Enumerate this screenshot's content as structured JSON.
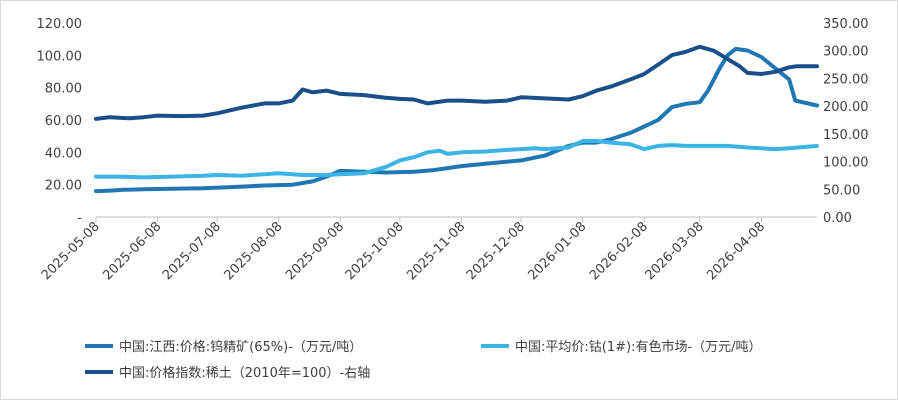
{
  "chart_data": {
    "type": "line",
    "title": "",
    "x_ticks": [
      "2025-05-08",
      "2025-06-08",
      "2025-07-08",
      "2025-08-08",
      "2025-09-08",
      "2025-10-08",
      "2025-11-08",
      "2025-12-08",
      "2026-01-08",
      "2026-02-08",
      "2026-03-08",
      "2026-04-08"
    ],
    "x_range": [
      "2025-05-08",
      "2026-05-06"
    ],
    "left_axis": {
      "ylim": [
        0,
        120
      ],
      "ticks": [
        0,
        20,
        40,
        60,
        80,
        100,
        120
      ],
      "tick_labels": [
        "-",
        "20.00",
        "40.00",
        "60.00",
        "80.00",
        "100.00",
        "120.00"
      ]
    },
    "right_axis": {
      "ylim": [
        0,
        350
      ],
      "ticks": [
        0,
        50,
        100,
        150,
        200,
        250,
        300,
        350
      ],
      "tick_labels": [
        "0.00",
        "50.00",
        "100.00",
        "150.00",
        "200.00",
        "250.00",
        "300.00",
        "350.00"
      ]
    },
    "grid": false,
    "legend_position": "bottom",
    "series": [
      {
        "name": "中国:江西:价格:钨精矿(65%)-（万元/吨）",
        "axis": "left",
        "color": "#1f77b4",
        "points": [
          [
            "2025-05-08",
            16
          ],
          [
            "2025-05-15",
            16.3
          ],
          [
            "2025-05-22",
            16.8
          ],
          [
            "2025-06-01",
            17.2
          ],
          [
            "2025-06-15",
            17.5
          ],
          [
            "2025-07-01",
            17.8
          ],
          [
            "2025-07-15",
            18.5
          ],
          [
            "2025-08-01",
            19.5
          ],
          [
            "2025-08-15",
            20
          ],
          [
            "2025-08-25",
            22
          ],
          [
            "2025-09-01",
            25
          ],
          [
            "2025-09-08",
            28.5
          ],
          [
            "2025-09-20",
            28
          ],
          [
            "2025-10-01",
            27.5
          ],
          [
            "2025-10-15",
            28
          ],
          [
            "2025-10-25",
            29
          ],
          [
            "2025-11-08",
            31.5
          ],
          [
            "2025-11-20",
            33
          ],
          [
            "2025-12-08",
            35
          ],
          [
            "2025-12-20",
            38
          ],
          [
            "2026-01-01",
            44
          ],
          [
            "2026-01-08",
            46
          ],
          [
            "2026-01-15",
            46
          ],
          [
            "2026-01-22",
            48
          ],
          [
            "2026-02-01",
            52
          ],
          [
            "2026-02-08",
            56
          ],
          [
            "2026-02-15",
            60
          ],
          [
            "2026-02-22",
            68
          ],
          [
            "2026-03-01",
            70
          ],
          [
            "2026-03-08",
            71
          ],
          [
            "2026-03-12",
            78
          ],
          [
            "2026-03-18",
            92
          ],
          [
            "2026-03-22",
            100
          ],
          [
            "2026-03-26",
            104
          ],
          [
            "2026-04-01",
            103
          ],
          [
            "2026-04-08",
            99
          ],
          [
            "2026-04-15",
            92
          ],
          [
            "2026-04-22",
            85
          ],
          [
            "2026-04-25",
            72
          ],
          [
            "2026-05-06",
            69
          ]
        ]
      },
      {
        "name": "中国:平均价:钴(1#):有色市场-（万元/吨）",
        "axis": "left",
        "color": "#3cb4e5",
        "points": [
          [
            "2025-05-08",
            25
          ],
          [
            "2025-05-20",
            25
          ],
          [
            "2025-06-01",
            24.5
          ],
          [
            "2025-06-15",
            25
          ],
          [
            "2025-07-01",
            25.5
          ],
          [
            "2025-07-08",
            26
          ],
          [
            "2025-07-20",
            25.5
          ],
          [
            "2025-08-01",
            26.5
          ],
          [
            "2025-08-08",
            27
          ],
          [
            "2025-08-20",
            26
          ],
          [
            "2025-09-01",
            26
          ],
          [
            "2025-09-08",
            26.5
          ],
          [
            "2025-09-20",
            27
          ],
          [
            "2025-10-01",
            31
          ],
          [
            "2025-10-08",
            35
          ],
          [
            "2025-10-15",
            37
          ],
          [
            "2025-10-22",
            40
          ],
          [
            "2025-10-28",
            41
          ],
          [
            "2025-11-01",
            39
          ],
          [
            "2025-11-08",
            40
          ],
          [
            "2025-11-20",
            40.5
          ],
          [
            "2025-12-01",
            41.5
          ],
          [
            "2025-12-08",
            42
          ],
          [
            "2025-12-15",
            42.5
          ],
          [
            "2025-12-20",
            42
          ],
          [
            "2026-01-01",
            43
          ],
          [
            "2026-01-08",
            47
          ],
          [
            "2026-01-15",
            47
          ],
          [
            "2026-01-22",
            46
          ],
          [
            "2026-02-01",
            45
          ],
          [
            "2026-02-08",
            42
          ],
          [
            "2026-02-15",
            44
          ],
          [
            "2026-02-22",
            44.5
          ],
          [
            "2026-03-01",
            44
          ],
          [
            "2026-03-08",
            44
          ],
          [
            "2026-03-15",
            44
          ],
          [
            "2026-03-22",
            44
          ],
          [
            "2026-04-01",
            43
          ],
          [
            "2026-04-08",
            42.5
          ],
          [
            "2026-04-15",
            42
          ],
          [
            "2026-04-22",
            42.5
          ],
          [
            "2026-05-01",
            43.5
          ],
          [
            "2026-05-06",
            44
          ]
        ]
      },
      {
        "name": "中国:价格指数:稀土（2010年=100）-右轴",
        "axis": "right",
        "color": "#1a4f8b",
        "points": [
          [
            "2025-05-08",
            177
          ],
          [
            "2025-05-15",
            180
          ],
          [
            "2025-05-25",
            178
          ],
          [
            "2025-06-01",
            180
          ],
          [
            "2025-06-08",
            183
          ],
          [
            "2025-06-20",
            182
          ],
          [
            "2025-07-01",
            183
          ],
          [
            "2025-07-08",
            187
          ],
          [
            "2025-07-20",
            197
          ],
          [
            "2025-08-01",
            205
          ],
          [
            "2025-08-08",
            205
          ],
          [
            "2025-08-15",
            210
          ],
          [
            "2025-08-20",
            230
          ],
          [
            "2025-08-25",
            225
          ],
          [
            "2025-09-01",
            228
          ],
          [
            "2025-09-08",
            222
          ],
          [
            "2025-09-20",
            220
          ],
          [
            "2025-10-01",
            215
          ],
          [
            "2025-10-08",
            213
          ],
          [
            "2025-10-15",
            212
          ],
          [
            "2025-10-22",
            205
          ],
          [
            "2025-11-01",
            210
          ],
          [
            "2025-11-08",
            210
          ],
          [
            "2025-11-20",
            208
          ],
          [
            "2025-12-01",
            210
          ],
          [
            "2025-12-08",
            216
          ],
          [
            "2025-12-20",
            214
          ],
          [
            "2026-01-01",
            212
          ],
          [
            "2026-01-08",
            218
          ],
          [
            "2026-01-15",
            228
          ],
          [
            "2026-01-22",
            235
          ],
          [
            "2026-02-01",
            248
          ],
          [
            "2026-02-08",
            258
          ],
          [
            "2026-02-15",
            275
          ],
          [
            "2026-02-22",
            292
          ],
          [
            "2026-03-01",
            298
          ],
          [
            "2026-03-08",
            307
          ],
          [
            "2026-03-15",
            300
          ],
          [
            "2026-03-22",
            285
          ],
          [
            "2026-03-28",
            272
          ],
          [
            "2026-04-01",
            260
          ],
          [
            "2026-04-08",
            258
          ],
          [
            "2026-04-15",
            262
          ],
          [
            "2026-04-22",
            270
          ],
          [
            "2026-04-26",
            272
          ],
          [
            "2026-05-06",
            272
          ]
        ]
      }
    ]
  }
}
